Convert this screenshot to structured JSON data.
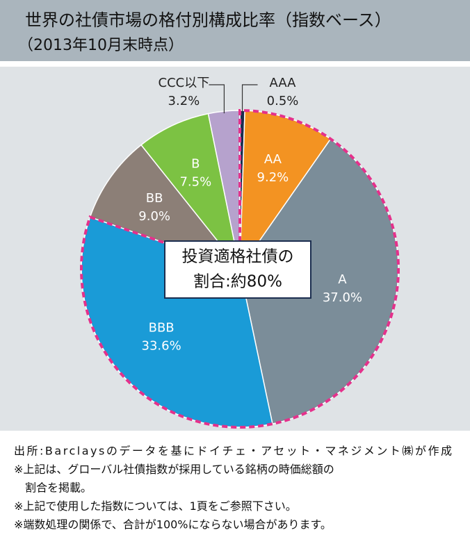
{
  "chart_data": {
    "type": "pie",
    "title": "世界の社債市場の格付別構成比率（指数ベース）",
    "subtitle": "（2013年10月末時点）",
    "categories": [
      "AAA",
      "AA",
      "A",
      "BBB",
      "BB",
      "B",
      "CCC以下"
    ],
    "values": [
      0.5,
      9.2,
      37.0,
      33.6,
      9.0,
      7.5,
      3.2
    ],
    "value_labels": [
      "0.5%",
      "9.2%",
      "37.0%",
      "33.6%",
      "9.0%",
      "7.5%",
      "3.2%"
    ],
    "colors": [
      "#1b2d4f",
      "#f39322",
      "#7b8d99",
      "#1a9bd7",
      "#8c7f77",
      "#7cc243",
      "#b6a2cd"
    ],
    "annotation": [
      "投資適格社債の",
      "割合:約80%"
    ],
    "notes": [
      "出所:Barclaysのデータを基にドイチェ・アセット・マネジメント㈱が作成",
      "※上記は、グローバル社債指数が採用している銘柄の時価総額の",
      "　割合を掲載。",
      "※上記で使用した指数については、1頁をご参照下さい。",
      "※端数処理の関係で、合計が100%にならない場合があります。"
    ]
  }
}
